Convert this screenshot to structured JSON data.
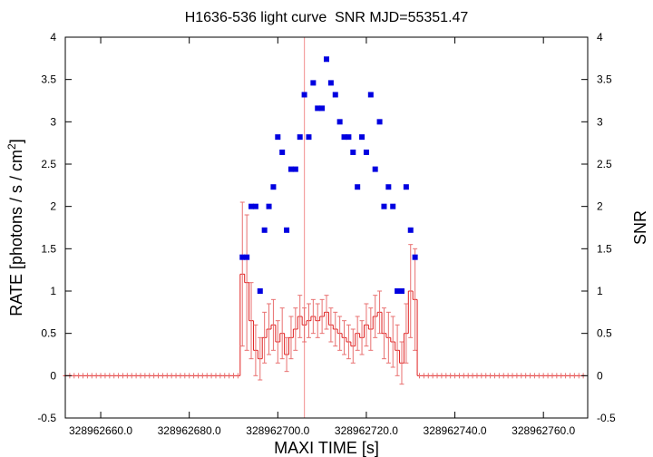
{
  "chart_data": {
    "type": "lightcurve",
    "title": "H1636-536 light curve  SNR MJD=55351.47",
    "xlabel": "MAXI TIME [s]",
    "ylabel": [
      "RATE [photons / s / cm",
      "2",
      "]"
    ],
    "y2label": "SNR",
    "xlim": [
      328962652,
      328962770
    ],
    "xticks": [
      {
        "value": 328962660,
        "label": "328962660.0"
      },
      {
        "value": 328962680,
        "label": "328962680.0"
      },
      {
        "value": 328962700,
        "label": "328962700.0"
      },
      {
        "value": 328962720,
        "label": "328962720.0"
      },
      {
        "value": 328962740,
        "label": "328962740.0"
      },
      {
        "value": 328962760,
        "label": "328962760.0"
      }
    ],
    "ylim": [
      -0.5,
      4
    ],
    "yticks": [
      -0.5,
      0,
      0.5,
      1,
      1.5,
      2,
      2.5,
      3,
      3.5,
      4
    ],
    "y2lim": [
      -0.5,
      4
    ],
    "y2ticks": [
      -0.5,
      0,
      0.5,
      1,
      1.5,
      2,
      2.5,
      3,
      3.5,
      4
    ],
    "vline": 328962706,
    "vline_color": "#f4a0a0",
    "series": [
      {
        "name": "RATE",
        "color": "#e02020",
        "error_color": "#e87070",
        "x": [
          328962652,
          328962653,
          328962654,
          328962655,
          328962656,
          328962657,
          328962658,
          328962659,
          328962660,
          328962661,
          328962662,
          328962663,
          328962664,
          328962665,
          328962666,
          328962667,
          328962668,
          328962669,
          328962670,
          328962671,
          328962672,
          328962673,
          328962674,
          328962675,
          328962676,
          328962677,
          328962678,
          328962679,
          328962680,
          328962681,
          328962682,
          328962683,
          328962684,
          328962685,
          328962686,
          328962687,
          328962688,
          328962689,
          328962690,
          328962691,
          328962692,
          328962693,
          328962694,
          328962695,
          328962696,
          328962697,
          328962698,
          328962699,
          328962700,
          328962701,
          328962702,
          328962703,
          328962704,
          328962705,
          328962706,
          328962707,
          328962708,
          328962709,
          328962710,
          328962711,
          328962712,
          328962713,
          328962714,
          328962715,
          328962716,
          328962717,
          328962718,
          328962719,
          328962720,
          328962721,
          328962722,
          328962723,
          328962724,
          328962725,
          328962726,
          328962727,
          328962728,
          328962729,
          328962730,
          328962731,
          328962732,
          328962733,
          328962734,
          328962735,
          328962736,
          328962737,
          328962738,
          328962739,
          328962740,
          328962741,
          328962742,
          328962743,
          328962744,
          328962745,
          328962746,
          328962747,
          328962748,
          328962749,
          328962750,
          328962751,
          328962752,
          328962753,
          328962754,
          328962755,
          328962756,
          328962757,
          328962758,
          328962759,
          328962760,
          328962761,
          328962762,
          328962763,
          328962764,
          328962765,
          328962766,
          328962767,
          328962768,
          328962769
        ],
        "values": [
          0,
          0,
          0,
          0,
          0,
          0,
          0,
          0,
          0,
          0,
          0,
          0,
          0,
          0,
          0,
          0,
          0,
          0,
          0,
          0,
          0,
          0,
          0,
          0,
          0,
          0,
          0,
          0,
          0,
          0,
          0,
          0,
          0,
          0,
          0,
          0,
          0,
          0,
          0,
          0,
          1.2,
          1.1,
          0.65,
          0.3,
          0.2,
          0.45,
          0.55,
          0.6,
          0.4,
          0.5,
          0.25,
          0.45,
          0.55,
          0.7,
          0.6,
          0.65,
          0.7,
          0.65,
          0.7,
          0.75,
          0.6,
          0.55,
          0.5,
          0.45,
          0.4,
          0.35,
          0.5,
          0.45,
          0.6,
          0.55,
          0.7,
          0.75,
          0.5,
          0.45,
          0.4,
          0.3,
          0.15,
          0.5,
          1.0,
          0.9,
          0,
          0,
          0,
          0,
          0,
          0,
          0,
          0,
          0,
          0,
          0,
          0,
          0,
          0,
          0,
          0,
          0,
          0,
          0,
          0,
          0,
          0,
          0,
          0,
          0,
          0,
          0,
          0,
          0,
          0,
          0,
          0,
          0,
          0,
          0,
          0,
          0,
          0
        ],
        "errors": [
          0,
          0,
          0,
          0,
          0,
          0,
          0,
          0,
          0,
          0,
          0,
          0,
          0,
          0,
          0,
          0,
          0,
          0,
          0,
          0,
          0,
          0,
          0,
          0,
          0,
          0,
          0,
          0,
          0,
          0,
          0,
          0,
          0,
          0,
          0,
          0,
          0,
          0,
          0,
          0,
          0.85,
          0.8,
          0.45,
          0.3,
          0.25,
          0.3,
          0.3,
          0.3,
          0.25,
          0.3,
          0.2,
          0.25,
          0.25,
          0.25,
          0.2,
          0.2,
          0.2,
          0.2,
          0.2,
          0.2,
          0.2,
          0.2,
          0.2,
          0.2,
          0.2,
          0.2,
          0.2,
          0.2,
          0.25,
          0.25,
          0.25,
          0.25,
          0.3,
          0.3,
          0.3,
          0.3,
          0.25,
          0.35,
          0.55,
          0.6,
          0,
          0,
          0,
          0,
          0,
          0,
          0,
          0,
          0,
          0,
          0,
          0,
          0,
          0,
          0,
          0,
          0,
          0,
          0,
          0,
          0,
          0,
          0,
          0,
          0,
          0,
          0,
          0,
          0,
          0,
          0,
          0,
          0,
          0,
          0,
          0,
          0,
          0
        ]
      },
      {
        "name": "SNR",
        "color": "#0000e0",
        "axis": "y2",
        "x": [
          328962692,
          328962693,
          328962694,
          328962695,
          328962696,
          328962697,
          328962698,
          328962699,
          328962700,
          328962701,
          328962702,
          328962703,
          328962704,
          328962705,
          328962706,
          328962707,
          328962708,
          328962709,
          328962710,
          328962711,
          328962712,
          328962713,
          328962714,
          328962715,
          328962716,
          328962717,
          328962718,
          328962719,
          328962720,
          328962721,
          328962722,
          328962723,
          328962724,
          328962725,
          328962726,
          328962727,
          328962728,
          328962729,
          328962730,
          328962731
        ],
        "values": [
          1.4,
          1.4,
          2.0,
          2.0,
          1.0,
          1.72,
          2.0,
          2.23,
          2.82,
          2.64,
          1.72,
          2.44,
          2.44,
          2.82,
          3.32,
          2.82,
          3.46,
          3.16,
          3.16,
          3.74,
          3.46,
          3.32,
          3.0,
          2.82,
          2.82,
          2.64,
          2.23,
          2.82,
          2.64,
          3.32,
          2.44,
          3.0,
          2.0,
          2.23,
          2.0,
          1.0,
          1.0,
          2.23,
          1.72,
          1.4
        ]
      }
    ]
  }
}
